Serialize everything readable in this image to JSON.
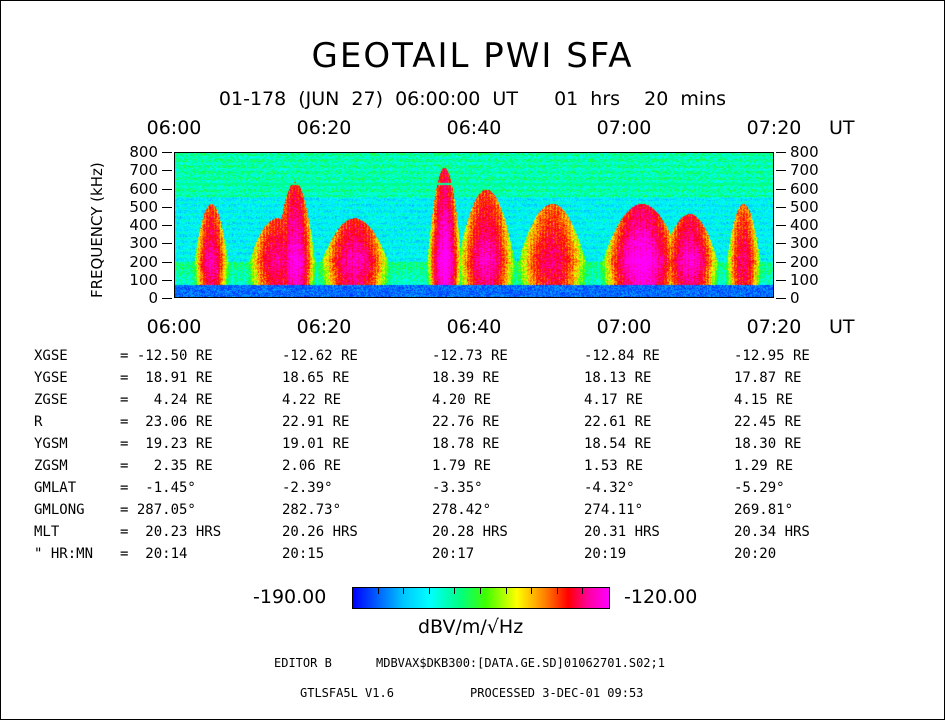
{
  "title": "GEOTAIL PWI SFA",
  "subtitle": "01-178 (JUN 27) 06:00:00 UT   01 hrs  20 mins",
  "chart_data": {
    "type": "heatmap",
    "x_ticks": [
      "06:00",
      "06:20",
      "06:40",
      "07:00",
      "07:20"
    ],
    "x_unit": "UT",
    "y_ticks": [
      0,
      100,
      200,
      300,
      400,
      500,
      600,
      700,
      800
    ],
    "ylabel": "FREQUENCY (kHz)",
    "ylim": [
      0,
      800
    ],
    "colorbar": {
      "min_label": "-190.00",
      "max_label": "-120.00",
      "min": -190.0,
      "max": -120.0,
      "unit": "dBV/m/√Hz"
    }
  },
  "orbit_table": {
    "rows": [
      {
        "label": "XGSE",
        "values": [
          "= -12.50 RE",
          "-12.62 RE",
          "-12.73 RE",
          "-12.84 RE",
          "-12.95 RE"
        ]
      },
      {
        "label": "YGSE",
        "values": [
          "=  18.91 RE",
          "18.65 RE",
          "18.39 RE",
          "18.13 RE",
          "17.87 RE"
        ]
      },
      {
        "label": "ZGSE",
        "values": [
          "=   4.24 RE",
          "4.22 RE",
          "4.20 RE",
          "4.17 RE",
          "4.15 RE"
        ]
      },
      {
        "label": "R",
        "values": [
          "=  23.06 RE",
          "22.91 RE",
          "22.76 RE",
          "22.61 RE",
          "22.45 RE"
        ]
      },
      {
        "label": "YGSM",
        "values": [
          "=  19.23 RE",
          "19.01 RE",
          "18.78 RE",
          "18.54 RE",
          "18.30 RE"
        ]
      },
      {
        "label": "ZGSM",
        "values": [
          "=   2.35 RE",
          "2.06 RE",
          "1.79 RE",
          "1.53 RE",
          "1.29 RE"
        ]
      },
      {
        "label": "GMLAT",
        "values": [
          "=  -1.45°",
          "-2.39°",
          "-3.35°",
          "-4.32°",
          "-5.29°"
        ]
      },
      {
        "label": "GMLONG",
        "values": [
          "= 287.05°",
          "282.73°",
          "278.42°",
          "274.11°",
          "269.81°"
        ]
      },
      {
        "label": "MLT",
        "values": [
          "=  20.23 HRS",
          "20.26 HRS",
          "20.28 HRS",
          "20.31 HRS",
          "20.34 HRS"
        ]
      },
      {
        "label": "\" HR:MN",
        "values": [
          "=  20:14",
          "20:15",
          "20:17",
          "20:19",
          "20:20"
        ]
      }
    ]
  },
  "footer": {
    "editor": "EDITOR B",
    "path": "MDBVAX$DKB300:[DATA.GE.SD]01062701.S02;1",
    "version": "GTLSFA5L V1.6",
    "processed": "PROCESSED  3-DEC-01  09:53"
  }
}
